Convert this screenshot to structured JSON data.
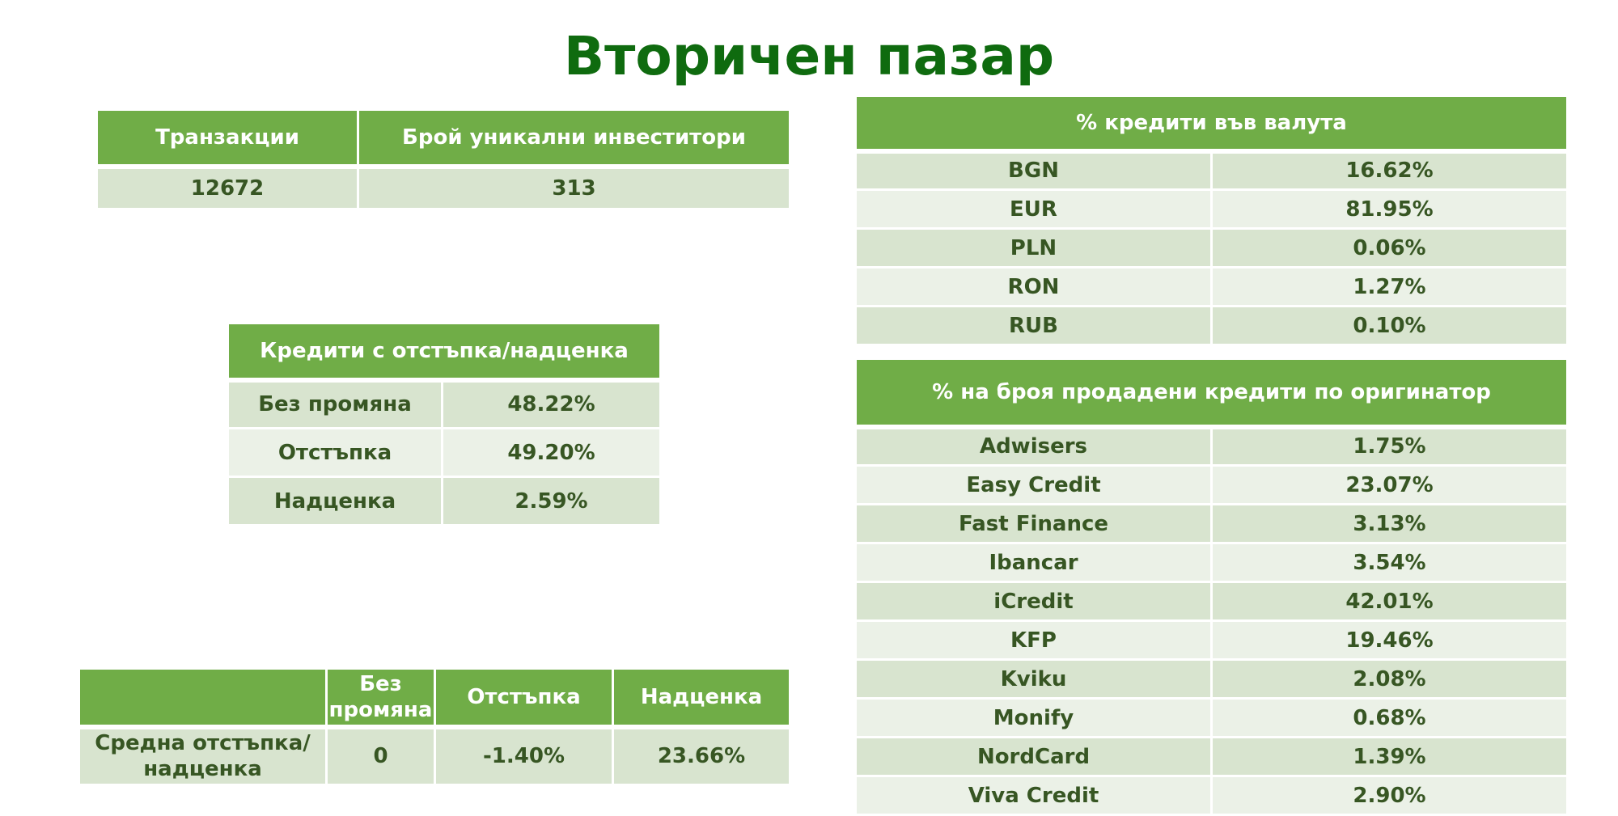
{
  "page_title": "Вторичен пазар",
  "summary": {
    "headers": [
      "Транзакции",
      "Брой уникални инвеститори"
    ],
    "values": [
      "12672",
      "313"
    ]
  },
  "discounts": {
    "header": "Кредити с отстъпка/надценка",
    "rows": [
      [
        "Без промяна",
        "48.22%"
      ],
      [
        "Отстъпка",
        "49.20%"
      ],
      [
        "Надценка",
        "2.59%"
      ]
    ]
  },
  "average": {
    "headers": [
      "",
      "Без промяна",
      "Отстъпка",
      "Надценка"
    ],
    "row": [
      "Средна отстъпка/надценка",
      "0",
      "-1.40%",
      "23.66%"
    ]
  },
  "currency": {
    "header": "% кредити във валута",
    "rows": [
      [
        "BGN",
        "16.62%"
      ],
      [
        "EUR",
        "81.95%"
      ],
      [
        "PLN",
        "0.06%"
      ],
      [
        "RON",
        "1.27%"
      ],
      [
        "RUB",
        "0.10%"
      ]
    ]
  },
  "originators": {
    "header": "% на броя продадени кредити по оригинатор",
    "rows": [
      [
        "Adwisers",
        "1.75%"
      ],
      [
        "Easy Credit",
        "23.07%"
      ],
      [
        "Fast Finance",
        "3.13%"
      ],
      [
        "Ibancar",
        "3.54%"
      ],
      [
        "iCredit",
        "42.01%"
      ],
      [
        "KFP",
        "19.46%"
      ],
      [
        "Kviku",
        "2.08%"
      ],
      [
        "Monify",
        "0.68%"
      ],
      [
        "NordCard",
        "1.39%"
      ],
      [
        "Viva Credit",
        "2.90%"
      ]
    ]
  },
  "colors": {
    "title": "#0f6b0f",
    "header_bg": "#70ad47",
    "row_dark": "#d8e4cf",
    "row_light": "#ebf1e7",
    "text": "#375623"
  }
}
